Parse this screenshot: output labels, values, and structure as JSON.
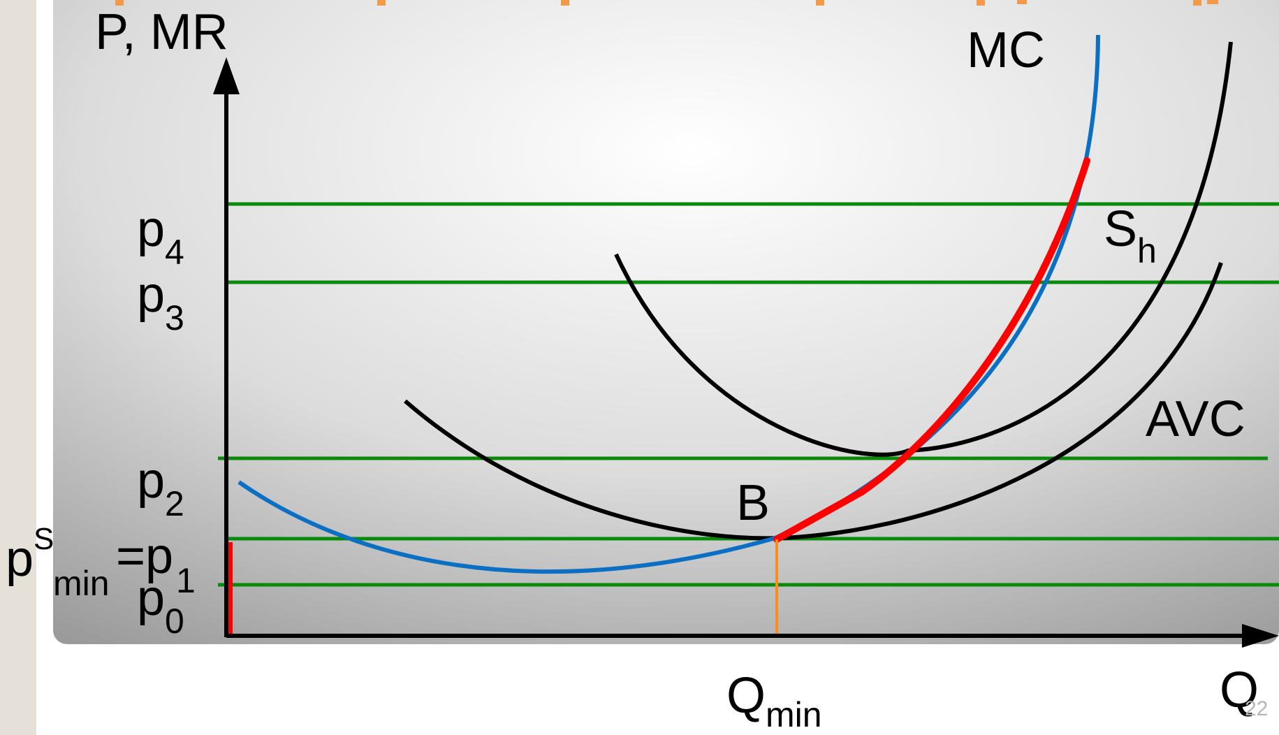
{
  "axes": {
    "y_label": "P, MR",
    "x_label": "Q",
    "x_tick_label": "Q",
    "x_tick_sub": "min"
  },
  "price_labels": [
    {
      "main": "p",
      "sub": "4"
    },
    {
      "main": "p",
      "sub": "3"
    },
    {
      "main": "p",
      "sub": "2"
    },
    {
      "main": "p",
      "sub": "0"
    }
  ],
  "min_price_label": {
    "p": "p",
    "sup": "S",
    "sub": "min",
    "eq": "=p",
    "eq_sub": "1"
  },
  "curves": {
    "mc": "MC",
    "avc": "AVC",
    "supply": "S",
    "supply_sub": "h",
    "point": "B"
  },
  "page_number": "22",
  "colors": {
    "price_lines": "#0a8a0a",
    "mc": "#0b6fc4",
    "supply": "#ff0000",
    "cost_curves": "#000000",
    "qmin_line": "#ff8c1a",
    "title_fragments": "#f39a4a"
  }
}
